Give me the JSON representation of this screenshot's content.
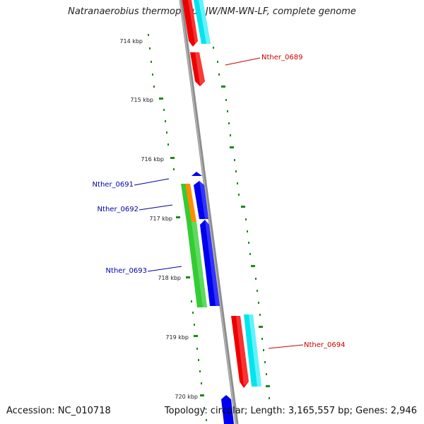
{
  "title": "Natranaerobius thermophilus JW/NM-WN-LF, complete genome",
  "accession_label": "Accession: NC_010718",
  "topology_label": "Topology: circular; Length: 3,165,557 bp; Genes: 2,946",
  "ticks": [
    "714 kbp",
    "715 kbp",
    "716 kbp",
    "717 kbp",
    "718 kbp",
    "719 kbp",
    "720 kbp"
  ],
  "gene_labels": [
    {
      "name": "Nther_0689",
      "color": "#cc0000"
    },
    {
      "name": "Nther_0691",
      "color": "#0000aa"
    },
    {
      "name": "Nther_0692",
      "color": "#0000aa"
    },
    {
      "name": "Nther_0693",
      "color": "#0000aa"
    },
    {
      "name": "Nther_0694",
      "color": "#cc0000"
    }
  ],
  "colors": {
    "backbone": "#8c8c8c",
    "tick": "#1a8a1a",
    "forward_cds": "#ee0000",
    "forward_orf": "#00e5ee",
    "reverse_cds": "#0000ee",
    "reverse_orf": "#33cc33",
    "orange_feature": "#ff8c00"
  }
}
